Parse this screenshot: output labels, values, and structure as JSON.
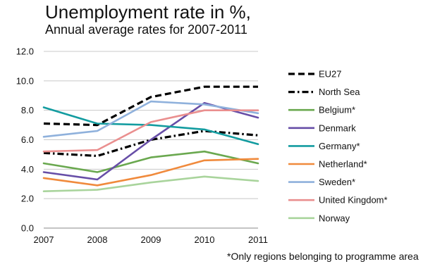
{
  "chart_data": {
    "type": "line",
    "title": "Unemployment rate in %,",
    "subtitle": "Annual average rates for 2007-2011",
    "footnote": "*Only regions belonging to programme area",
    "x": [
      "2007",
      "2008",
      "2009",
      "2010",
      "2011"
    ],
    "ylim": [
      0,
      12
    ],
    "yticks": [
      "0.0",
      "2.0",
      "4.0",
      "6.0",
      "8.0",
      "10.0",
      "12.0"
    ],
    "grid": true,
    "legend_position": "right",
    "series": [
      {
        "name": "EU27",
        "color": "#000000",
        "dash": "dashed",
        "values": [
          7.1,
          7.0,
          8.9,
          9.6,
          9.6
        ]
      },
      {
        "name": "North Sea",
        "color": "#000000",
        "dash": "dashdot",
        "values": [
          5.1,
          4.9,
          6.0,
          6.6,
          6.3
        ]
      },
      {
        "name": "Belgium*",
        "color": "#6aa84f",
        "dash": "solid",
        "values": [
          4.4,
          3.8,
          4.8,
          5.2,
          4.4
        ]
      },
      {
        "name": "Denmark",
        "color": "#674ea7",
        "dash": "solid",
        "values": [
          3.8,
          3.3,
          6.0,
          8.5,
          7.5
        ]
      },
      {
        "name": "Germany*",
        "color": "#139ca0",
        "dash": "solid",
        "values": [
          8.2,
          7.1,
          7.0,
          6.7,
          5.7
        ]
      },
      {
        "name": "Netherland*",
        "color": "#f08a3c",
        "dash": "solid",
        "values": [
          3.4,
          2.9,
          3.6,
          4.6,
          4.7
        ]
      },
      {
        "name": "Sweden*",
        "color": "#8fb1dc",
        "dash": "solid",
        "values": [
          6.2,
          6.6,
          8.6,
          8.4,
          7.8
        ]
      },
      {
        "name": "United Kingdom*",
        "color": "#ea8f8f",
        "dash": "solid",
        "values": [
          5.2,
          5.3,
          7.2,
          8.0,
          8.0
        ]
      },
      {
        "name": "Norway",
        "color": "#a9d49c",
        "dash": "solid",
        "values": [
          2.5,
          2.6,
          3.1,
          3.5,
          3.2
        ]
      }
    ]
  }
}
